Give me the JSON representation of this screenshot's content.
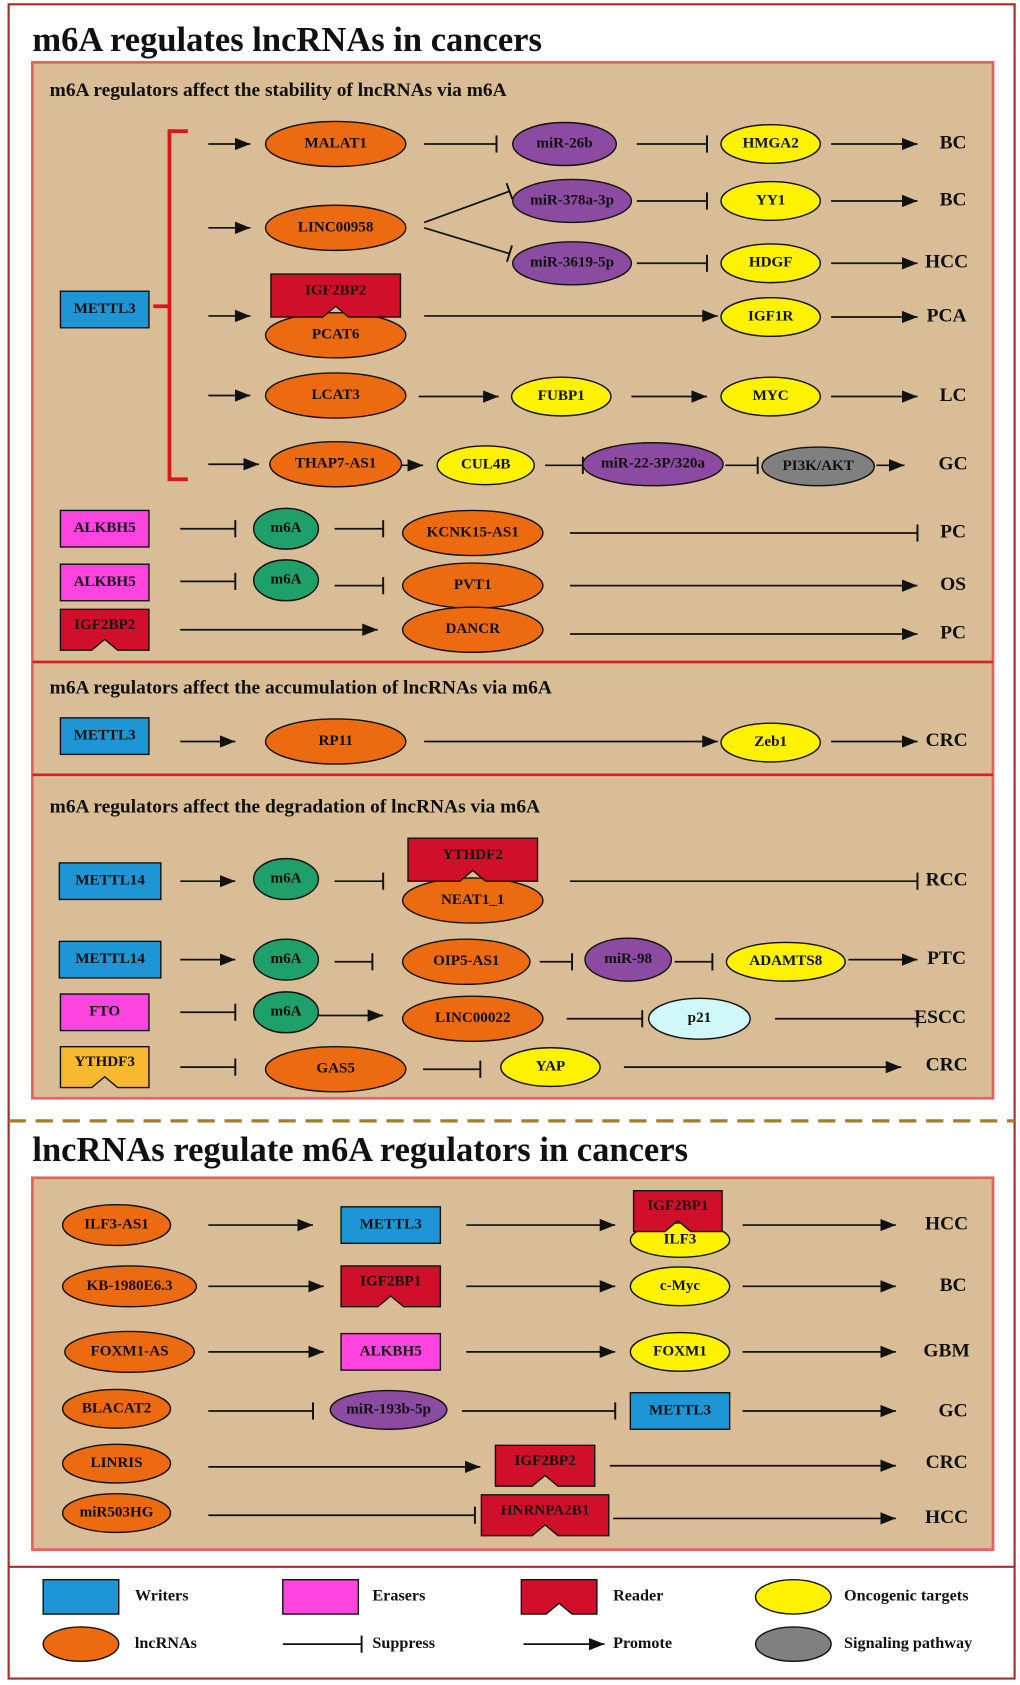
{
  "title": "m6A regulates lncRNAs in cancers",
  "sections": [
    {
      "title": "m6A regulators affect the stability of lncRNAs via m6A",
      "nodes": [
        "METTL3",
        "MALAT1",
        "miR-26b",
        "HMGA2",
        "BC",
        "LINC00958",
        "miR-378a-3p",
        "YY1",
        "BC",
        "miR-3619-5p",
        "HDGF",
        "HCC",
        "IGF2BP2",
        "PCAT6",
        "IGF1R",
        "PCA",
        "LCAT3",
        "FUBP1",
        "MYC",
        "LC",
        "THAP7-AS1",
        "CUL4B",
        "miR-22-3P/320a",
        "PI3K/AKT",
        "GC",
        "ALKBH5",
        "m6A",
        "KCNK15-AS1",
        "PC",
        "ALKBH5",
        "m6A",
        "PVT1",
        "OS",
        "IGF2BP2",
        "DANCR",
        "PC"
      ]
    },
    {
      "title": "m6A regulators affect the accumulation of lncRNAs via m6A",
      "nodes": [
        "METTL3",
        "RP11",
        "Zeb1",
        "CRC"
      ]
    },
    {
      "title": "m6A regulators affect the degradation of lncRNAs via m6A",
      "nodes": [
        "METTL14",
        "m6A",
        "YTHDF2",
        "NEAT1_1",
        "RCC",
        "METTL14",
        "m6A",
        "OIP5-AS1",
        "miR-98",
        "ADAMTS8",
        "PTC",
        "FTO",
        "m6A",
        "LINC00022",
        "p21",
        "ESCC",
        "YTHDF3",
        "GAS5",
        "YAP",
        "CRC"
      ]
    }
  ],
  "title2": "lncRNAs regulate m6A regulators in cancers",
  "section2": {
    "nodes": [
      "ILF3-AS1",
      "METTL3",
      "IGF2BP1",
      "ILF3",
      "HCC",
      "KB-1980E6.3",
      "IGF2BP1",
      "c-Myc",
      "BC",
      "FOXM1-AS",
      "ALKBH5",
      "FOXM1",
      "GBM",
      "BLACAT2",
      "miR-193b-5p",
      "METTL3",
      "GC",
      "LINRIS",
      "IGF2BP2",
      "CRC",
      "miR503HG",
      "HNRNPA2B1",
      "HCC"
    ]
  },
  "legend": [
    "Writers",
    "Erasers",
    "Reader",
    "Oncogenic targets",
    "lncRNAs",
    "Suppress",
    "Promote",
    "Signaling pathway"
  ]
}
